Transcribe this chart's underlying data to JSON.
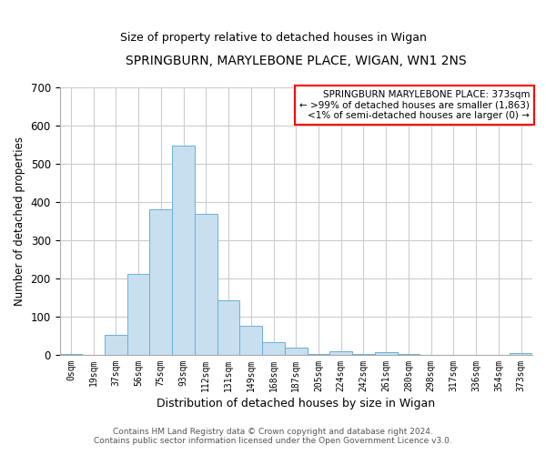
{
  "title": "SPRINGBURN, MARYLEBONE PLACE, WIGAN, WN1 2NS",
  "subtitle": "Size of property relative to detached houses in Wigan",
  "xlabel": "Distribution of detached houses by size in Wigan",
  "ylabel": "Number of detached properties",
  "bar_color": "#c8dff0",
  "bar_edge_color": "#6aafd6",
  "categories": [
    "0sqm",
    "19sqm",
    "37sqm",
    "56sqm",
    "75sqm",
    "93sqm",
    "112sqm",
    "131sqm",
    "149sqm",
    "168sqm",
    "187sqm",
    "205sqm",
    "224sqm",
    "242sqm",
    "261sqm",
    "280sqm",
    "298sqm",
    "317sqm",
    "336sqm",
    "354sqm",
    "373sqm"
  ],
  "values": [
    3,
    0,
    53,
    213,
    381,
    547,
    370,
    142,
    76,
    33,
    20,
    3,
    9,
    3,
    8,
    3,
    0,
    0,
    0,
    0,
    5
  ],
  "ylim": [
    0,
    700
  ],
  "yticks": [
    0,
    100,
    200,
    300,
    400,
    500,
    600,
    700
  ],
  "annotation_line1": "SPRINGBURN MARYLEBONE PLACE: 373sqm",
  "annotation_line2": "← >99% of detached houses are smaller (1,863)",
  "annotation_line3": "<1% of semi-detached houses are larger (0) →",
  "footer_line1": "Contains HM Land Registry data © Crown copyright and database right 2024.",
  "footer_line2": "Contains public sector information licensed under the Open Government Licence v3.0.",
  "background_color": "#ffffff",
  "grid_color": "#cccccc"
}
